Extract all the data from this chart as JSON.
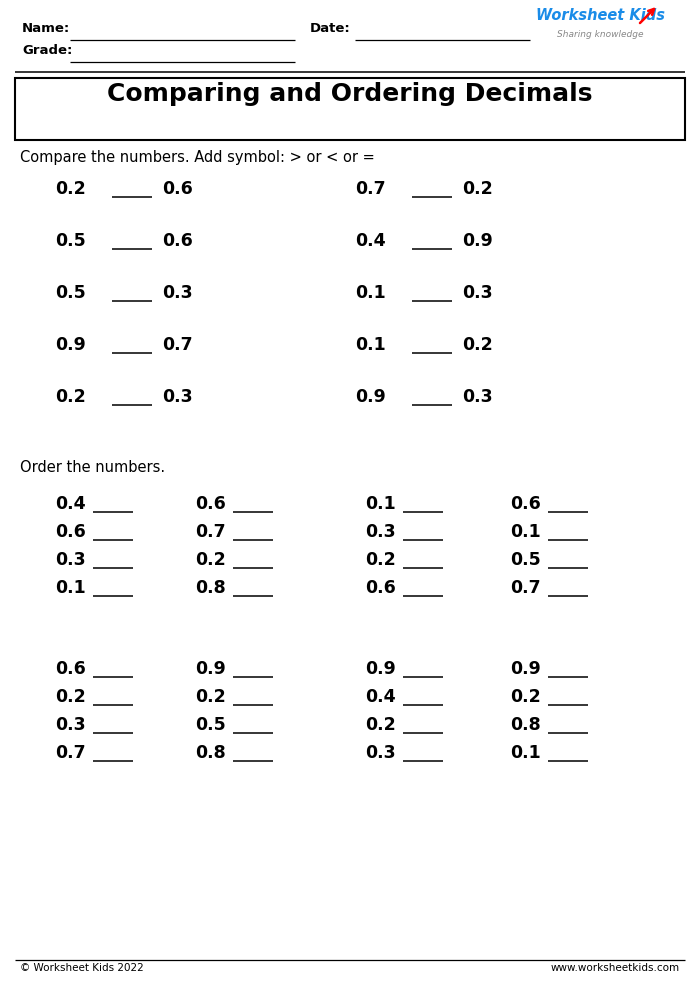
{
  "title": "Comparing and Ordering Decimals",
  "bg_color": "#ffffff",
  "header_name": "Name:",
  "header_grade": "Grade:",
  "header_date": "Date:",
  "logo_text1": "Worksheet Kids",
  "logo_text2": "Sharing knowledge",
  "compare_instruction": "Compare the numbers. Add symbol: > or < or =",
  "compare_pairs_left": [
    [
      "0.2",
      "0.6"
    ],
    [
      "0.5",
      "0.6"
    ],
    [
      "0.5",
      "0.3"
    ],
    [
      "0.9",
      "0.7"
    ],
    [
      "0.2",
      "0.3"
    ]
  ],
  "compare_pairs_right": [
    [
      "0.7",
      "0.2"
    ],
    [
      "0.4",
      "0.9"
    ],
    [
      "0.1",
      "0.3"
    ],
    [
      "0.1",
      "0.2"
    ],
    [
      "0.9",
      "0.3"
    ]
  ],
  "order_instruction": "Order the numbers.",
  "order_groups_block1": [
    [
      "0.4",
      "0.6",
      "0.3",
      "0.1"
    ],
    [
      "0.6",
      "0.7",
      "0.2",
      "0.8"
    ],
    [
      "0.1",
      "0.3",
      "0.2",
      "0.6"
    ],
    [
      "0.6",
      "0.1",
      "0.5",
      "0.7"
    ]
  ],
  "order_groups_block2": [
    [
      "0.6",
      "0.2",
      "0.3",
      "0.7"
    ],
    [
      "0.9",
      "0.2",
      "0.5",
      "0.8"
    ],
    [
      "0.9",
      "0.4",
      "0.2",
      "0.3"
    ],
    [
      "0.9",
      "0.2",
      "0.8",
      "0.1"
    ]
  ],
  "footer_left": "© Worksheet Kids 2022",
  "footer_right": "www.worksheetkids.com"
}
